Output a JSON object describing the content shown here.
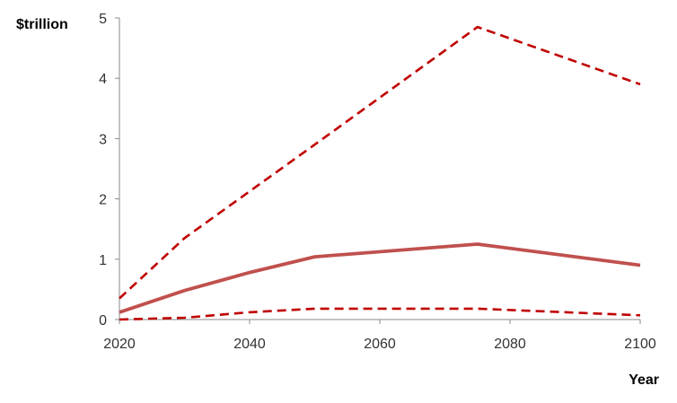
{
  "chart_data": {
    "type": "line",
    "title": "",
    "xlabel": "Year",
    "ylabel": "$trillion",
    "xlim": [
      2020,
      2100
    ],
    "ylim": [
      0,
      5
    ],
    "x_ticks": [
      "2020",
      "2040",
      "2060",
      "2080",
      "2100"
    ],
    "y_ticks": [
      "0",
      "1",
      "2",
      "3",
      "4",
      "5"
    ],
    "grid": false,
    "legend": "none",
    "series": [
      {
        "style": "dashed",
        "color": "#c00000",
        "x": [
          2020,
          2030,
          2050,
          2075,
          2100
        ],
        "values": [
          0.35,
          1.35,
          2.9,
          4.85,
          3.9
        ]
      },
      {
        "style": "solid",
        "color": "#c0504d",
        "x": [
          2020,
          2030,
          2040,
          2050,
          2075,
          2100
        ],
        "values": [
          0.12,
          0.48,
          0.78,
          1.04,
          1.25,
          0.9
        ]
      },
      {
        "style": "dashed",
        "color": "#c00000",
        "x": [
          2020,
          2030,
          2040,
          2050,
          2075,
          2100
        ],
        "values": [
          0.0,
          0.03,
          0.12,
          0.18,
          0.18,
          0.07
        ]
      }
    ]
  }
}
